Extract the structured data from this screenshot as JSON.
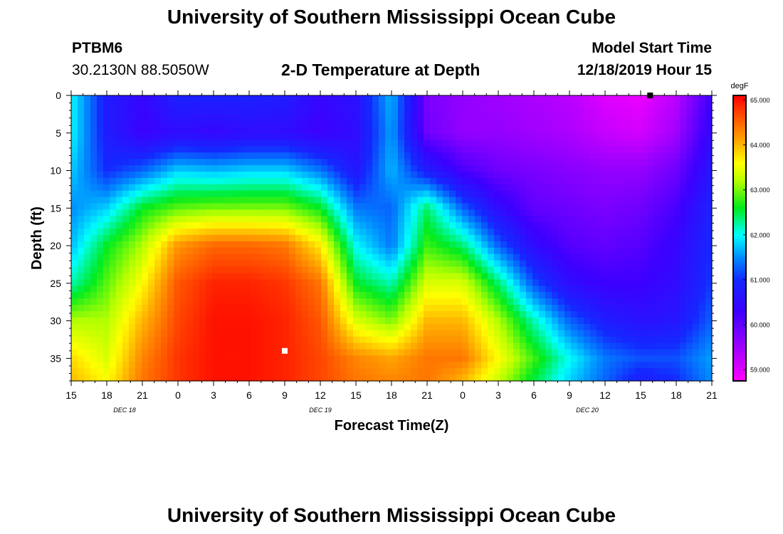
{
  "header": {
    "top_title": "University of Southern Mississippi Ocean Cube",
    "bottom_title": "University of Southern Mississippi Ocean Cube",
    "station_id": "PTBM6",
    "station_coords": "30.2130N 88.5050W",
    "plot_title": "2-D Temperature at Depth",
    "model_start_label": "Model Start Time",
    "model_start_value": "12/18/2019 Hour 15"
  },
  "chart_data": {
    "type": "heatmap",
    "title": "2-D Temperature at Depth",
    "xlabel": "Forecast Time(Z)",
    "ylabel": "Depth (ft)",
    "x_tick_labels": [
      "15",
      "18",
      "21",
      "0",
      "3",
      "6",
      "9",
      "12",
      "15",
      "18",
      "21",
      "0",
      "3",
      "6",
      "9",
      "12",
      "15",
      "18",
      "21"
    ],
    "x_range_hours": [
      0,
      54
    ],
    "date_labels": [
      {
        "label": "DEC 18",
        "at_hour": 4.5
      },
      {
        "label": "DEC 19",
        "at_hour": 21
      },
      {
        "label": "DEC 20",
        "at_hour": 43.5
      }
    ],
    "y_ticks": [
      0,
      5,
      10,
      15,
      20,
      25,
      30,
      35
    ],
    "ylim": [
      0,
      38
    ],
    "colorbar": {
      "unit": "degF",
      "min": 58.75,
      "max": 65.1,
      "ticks": [
        "59.000",
        "60.000",
        "61.000",
        "62.000",
        "63.000",
        "64.000",
        "65.000"
      ],
      "tick_values": [
        59,
        60,
        61,
        62,
        63,
        64,
        65
      ]
    },
    "x_hours": [
      0,
      3,
      6,
      9,
      12,
      15,
      18,
      21,
      24,
      27,
      30,
      33,
      36,
      39,
      42,
      45,
      48,
      51,
      54
    ],
    "y_depths": [
      0,
      5,
      10,
      15,
      20,
      25,
      30,
      35,
      38
    ],
    "temperature_degF": [
      [
        62.0,
        60.8,
        60.4,
        60.9,
        60.9,
        60.9,
        60.8,
        60.4,
        60.6,
        61.7,
        59.8,
        59.6,
        59.5,
        59.4,
        59.3,
        59.0,
        58.9,
        59.3,
        60.3
      ],
      [
        62.0,
        60.8,
        60.3,
        60.5,
        60.4,
        60.5,
        60.5,
        60.3,
        60.5,
        61.6,
        59.9,
        59.6,
        59.6,
        59.5,
        59.4,
        59.2,
        59.1,
        59.5,
        60.5
      ],
      [
        61.8,
        61.0,
        61.3,
        61.8,
        61.7,
        61.8,
        61.8,
        61.4,
        60.7,
        61.7,
        60.8,
        60.2,
        59.9,
        59.8,
        59.7,
        59.6,
        59.6,
        59.9,
        60.7
      ],
      [
        61.5,
        61.8,
        62.6,
        62.9,
        63.0,
        63.0,
        63.0,
        62.6,
        61.4,
        61.3,
        62.4,
        61.3,
        60.5,
        60.0,
        59.9,
        59.8,
        59.9,
        60.2,
        60.9
      ],
      [
        61.7,
        62.6,
        63.2,
        64.2,
        64.5,
        64.5,
        64.4,
        63.7,
        62.0,
        61.4,
        62.8,
        62.4,
        61.3,
        60.5,
        60.1,
        60.0,
        60.1,
        60.4,
        61.0
      ],
      [
        62.2,
        62.9,
        63.6,
        64.6,
        64.9,
        64.9,
        64.8,
        64.4,
        62.6,
        62.2,
        63.4,
        63.4,
        62.4,
        61.2,
        60.5,
        60.3,
        60.3,
        60.5,
        61.1
      ],
      [
        63.2,
        63.2,
        64.0,
        64.7,
        65.0,
        65.0,
        64.9,
        64.6,
        63.4,
        63.0,
        64.0,
        64.0,
        63.2,
        62.2,
        61.3,
        60.8,
        60.6,
        60.7,
        61.3
      ],
      [
        63.8,
        63.4,
        64.3,
        64.8,
        65.0,
        65.0,
        64.9,
        64.7,
        64.3,
        64.1,
        64.4,
        64.4,
        63.6,
        62.8,
        62.0,
        61.4,
        61.2,
        61.2,
        61.6
      ],
      [
        64.0,
        63.6,
        64.4,
        64.8,
        65.0,
        65.0,
        64.9,
        64.7,
        64.4,
        64.3,
        64.4,
        64.0,
        63.3,
        62.5,
        61.8,
        61.3,
        60.8,
        61.0,
        61.5
      ]
    ],
    "markers": [
      {
        "hour": 18,
        "depth": 34,
        "color": "#ffffff"
      },
      {
        "hour": 48.8,
        "depth": 0,
        "color": "#000000"
      }
    ]
  }
}
